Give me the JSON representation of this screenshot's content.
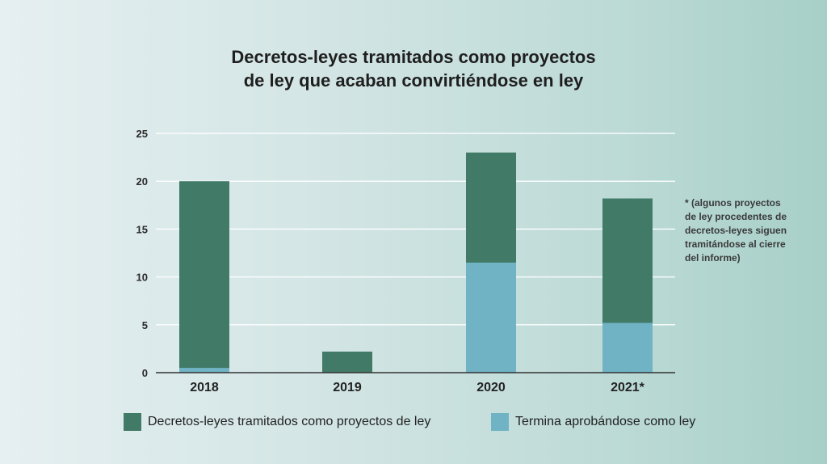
{
  "chart_data": {
    "type": "bar",
    "title": "Decretos-leyes tramitados como proyectos\nde ley que acaban convirtiéndose en ley",
    "categories": [
      "2018",
      "2019",
      "2020",
      "2021*"
    ],
    "series": [
      {
        "name": "Decretos-leyes tramitados como proyectos de ley",
        "values": [
          20,
          2.2,
          23,
          18.2
        ],
        "color": "#417a66"
      },
      {
        "name": "Termina aprobándose como ley",
        "values": [
          0.5,
          0,
          11.5,
          5.2
        ],
        "color": "#70b3c4"
      }
    ],
    "overlay": "approved drawn over total",
    "ylim": [
      0,
      25
    ],
    "yticks": [
      0,
      5,
      10,
      15,
      20,
      25
    ],
    "grid": true,
    "legend": "bottom",
    "xlabel": "",
    "ylabel": "",
    "annotation": "* (algunos proyectos\nde ley procedentes de\ndecretos-leyes siguen\ntramitándose al cierre\ndel informe)"
  }
}
